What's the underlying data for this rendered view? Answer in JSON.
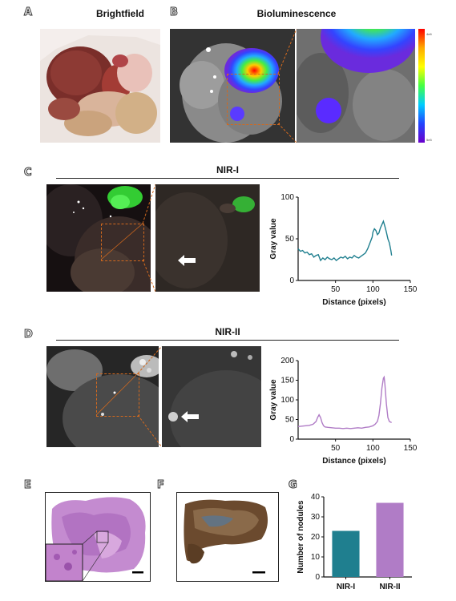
{
  "panels": {
    "A": {
      "letter": "A",
      "title": "Brightfield"
    },
    "B": {
      "letter": "B",
      "title": "Bioluminescence",
      "colorbar_top": "4e6",
      "colorbar_bottom": "5e5"
    },
    "C": {
      "letter": "C",
      "title": "NIR-I"
    },
    "D": {
      "letter": "D",
      "title": "NIR-II"
    },
    "E": {
      "letter": "E"
    },
    "F": {
      "letter": "F"
    },
    "G": {
      "letter": "G"
    }
  },
  "colors": {
    "nir1": "#1f7f8f",
    "nir2": "#b07cc6",
    "orange": "#d2691e"
  },
  "chart_data": [
    {
      "id": "C",
      "type": "line",
      "xlabel": "Distance (pixels)",
      "ylabel": "Gray value",
      "xlim": [
        0,
        150
      ],
      "ylim": [
        0,
        100
      ],
      "xticks": [
        50,
        100,
        150
      ],
      "yticks": [
        0,
        50,
        100
      ],
      "series": [
        {
          "color": "#1f7f8f",
          "x": [
            0,
            3,
            6,
            9,
            12,
            15,
            18,
            21,
            24,
            27,
            30,
            33,
            36,
            39,
            42,
            45,
            48,
            51,
            54,
            57,
            60,
            63,
            66,
            69,
            72,
            75,
            78,
            81,
            84,
            87,
            90,
            93,
            96,
            99,
            100,
            102,
            104,
            106,
            108,
            110,
            112,
            114,
            116,
            118,
            120,
            122,
            124,
            125
          ],
          "y": [
            38,
            35,
            36,
            33,
            34,
            31,
            32,
            28,
            30,
            31,
            24,
            27,
            25,
            28,
            26,
            25,
            27,
            24,
            26,
            28,
            27,
            29,
            26,
            28,
            27,
            30,
            28,
            27,
            29,
            31,
            33,
            38,
            45,
            52,
            58,
            62,
            60,
            55,
            57,
            63,
            67,
            71,
            65,
            58,
            50,
            45,
            36,
            30
          ]
        }
      ]
    },
    {
      "id": "D",
      "type": "line",
      "xlabel": "Distance (pixels)",
      "ylabel": "Gray value",
      "xlim": [
        0,
        150
      ],
      "ylim": [
        0,
        200
      ],
      "xticks": [
        50,
        100,
        150
      ],
      "yticks": [
        0,
        50,
        100,
        150,
        200
      ],
      "series": [
        {
          "color": "#b07cc6",
          "x": [
            0,
            5,
            10,
            15,
            20,
            24,
            26,
            28,
            30,
            32,
            34,
            36,
            40,
            45,
            50,
            55,
            60,
            65,
            70,
            75,
            80,
            85,
            90,
            95,
            100,
            103,
            106,
            108,
            110,
            112,
            114,
            115,
            116,
            118,
            120,
            122,
            125
          ],
          "y": [
            32,
            33,
            34,
            35,
            38,
            45,
            55,
            62,
            55,
            42,
            34,
            31,
            30,
            29,
            28,
            28,
            27,
            28,
            27,
            28,
            29,
            28,
            30,
            31,
            34,
            38,
            45,
            60,
            90,
            130,
            155,
            158,
            140,
            90,
            55,
            45,
            42
          ]
        }
      ]
    },
    {
      "id": "G",
      "type": "bar",
      "categories": [
        "NIR-I",
        "NIR-II"
      ],
      "values": [
        23,
        37
      ],
      "ylabel": "Number of nodules",
      "ylim": [
        0,
        40
      ],
      "yticks": [
        0,
        10,
        20,
        30,
        40
      ],
      "colors": [
        "#1f7f8f",
        "#b07cc6"
      ]
    }
  ]
}
